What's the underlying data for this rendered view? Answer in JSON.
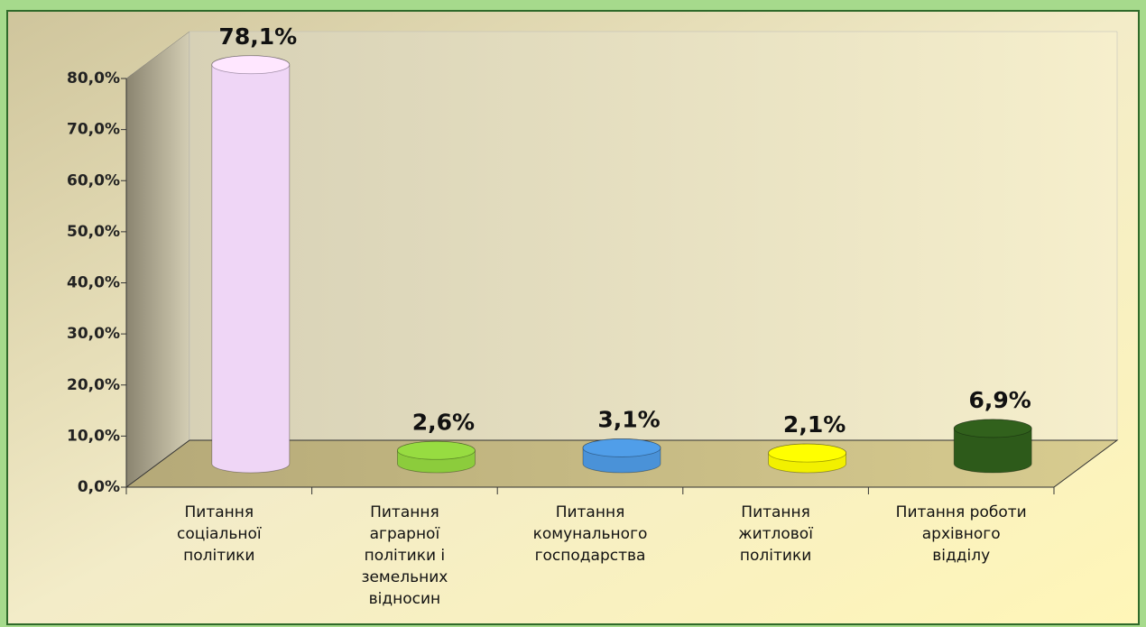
{
  "chart_data": {
    "type": "bar3d",
    "categories": [
      "Питання\nсоціальної\nполітики",
      "Питання\nаграрної\nполітики і\nземельних\nвідносин",
      "Питання\nкомунального\nгосподарства",
      "Питання\nжитлової\nполітики",
      "Питання роботи\nархівного\nвідділу"
    ],
    "values": [
      78.1,
      2.6,
      3.1,
      2.1,
      6.9
    ],
    "value_labels": [
      "78,1%",
      "2,6%",
      "3,1%",
      "2,1%",
      "6,9%"
    ],
    "colors": [
      "#efd6f6",
      "#8ccc3c",
      "#4a92d8",
      "#f2f000",
      "#2d5a1a"
    ],
    "ylim": [
      0,
      80
    ],
    "yticks": [
      {
        "value": 0,
        "label": "0,0%"
      },
      {
        "value": 10,
        "label": "10,0%"
      },
      {
        "value": 20,
        "label": "20,0%"
      },
      {
        "value": 30,
        "label": "30,0%"
      },
      {
        "value": 40,
        "label": "40,0%"
      },
      {
        "value": 50,
        "label": "50,0%"
      },
      {
        "value": 60,
        "label": "60,0%"
      },
      {
        "value": 70,
        "label": "70,0%"
      },
      {
        "value": 80,
        "label": "80,0%"
      }
    ],
    "grid": false
  }
}
